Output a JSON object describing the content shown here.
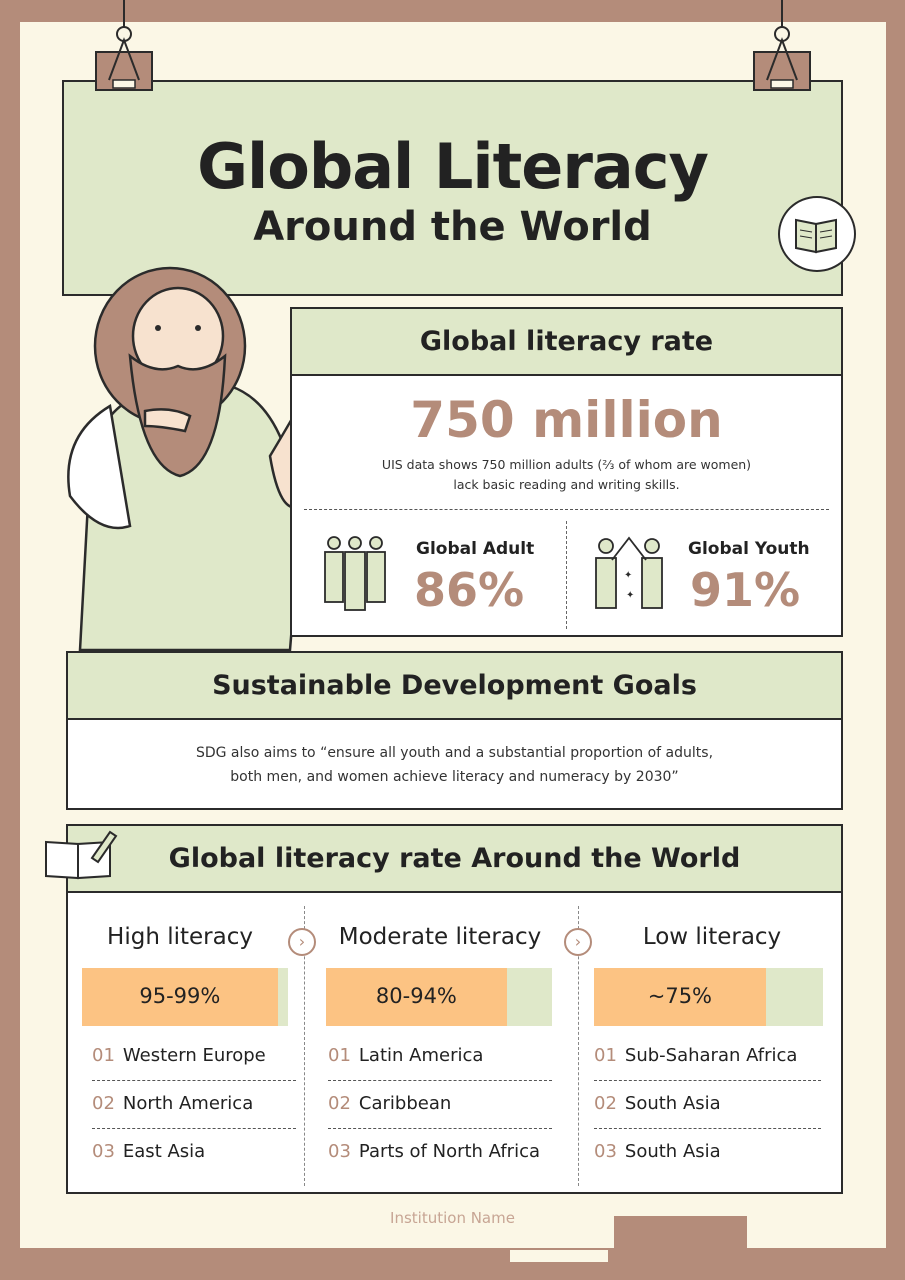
{
  "header": {
    "title_line1": "Global Literacy",
    "title_line2": "Around the World",
    "icon": "open-book-icon"
  },
  "literacy_rate": {
    "heading": "Global literacy rate",
    "headline": "750 million",
    "description_line1": "UIS data shows 750 million adults (⅔ of whom are women)",
    "description_line2": "lack basic reading and writing skills.",
    "adult": {
      "label": "Global Adult",
      "value": "86%",
      "icon": "adults-group-icon"
    },
    "youth": {
      "label": "Global Youth",
      "value": "91%",
      "icon": "youth-high-five-icon"
    }
  },
  "sdg": {
    "heading": "Sustainable Development Goals",
    "text_line1": "SDG also aims to “ensure all youth and a substantial proportion of adults,",
    "text_line2": "both men, and women achieve literacy and numeracy by 2030”"
  },
  "regions": {
    "heading": "Global literacy rate Around the World",
    "icon": "book-pencil-icon",
    "columns": [
      {
        "title": "High literacy",
        "range": "95-99%",
        "fill": 0.95,
        "items": [
          {
            "num": "01",
            "name": "Western Europe"
          },
          {
            "num": "02",
            "name": "North America"
          },
          {
            "num": "03",
            "name": "East Asia"
          }
        ]
      },
      {
        "title": "Moderate literacy",
        "range": "80-94%",
        "fill": 0.8,
        "items": [
          {
            "num": "01",
            "name": "Latin America"
          },
          {
            "num": "02",
            "name": "Caribbean"
          },
          {
            "num": "03",
            "name": "Parts of North Africa"
          }
        ]
      },
      {
        "title": "Low literacy",
        "range": "~75%",
        "fill": 0.75,
        "items": [
          {
            "num": "01",
            "name": "Sub-Saharan Africa"
          },
          {
            "num": "02",
            "name": "South Asia"
          },
          {
            "num": "03",
            "name": "South Asia"
          }
        ]
      }
    ]
  },
  "footer": {
    "institution": "Institution Name"
  },
  "colors": {
    "accent": "#b48c7a",
    "green": "#dfe8c9",
    "orange": "#fcc383",
    "paper": "#fbf7e6"
  }
}
